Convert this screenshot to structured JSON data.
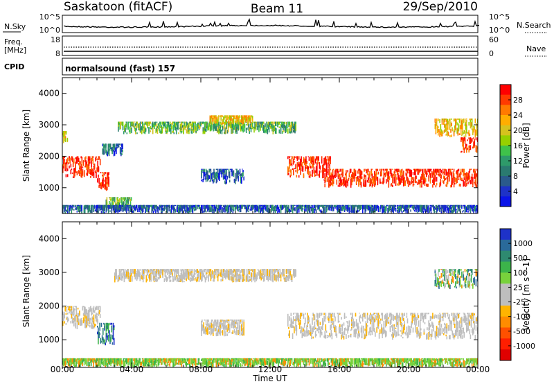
{
  "header": {
    "site": "Saskatoon (fitACF)",
    "beam": "Beam 11",
    "date": "29/Sep/2010"
  },
  "noise_panel": {
    "left_label": "N.Sky",
    "left_ticks": [
      "10^5",
      "10^0"
    ],
    "right_ticks": [
      "10^5",
      "10^0"
    ],
    "right_label": "N.Search"
  },
  "freq_panel": {
    "label_line1": "Freq.",
    "label_line2": "[MHz]",
    "left_ticks": [
      "18",
      "8"
    ],
    "right_ticks": [
      "60",
      "0"
    ],
    "right_label": "Nave"
  },
  "cpid_panel": {
    "label": "CPID",
    "text": "normalsound (fast) 157"
  },
  "chart_data": [
    {
      "type": "heatmap",
      "name": "power",
      "ylabel": "Slant Range [km]",
      "ylim": [
        180,
        4500
      ],
      "y_ticks": [
        1000,
        2000,
        3000,
        4000
      ],
      "colorbar": {
        "label": "Power [dB]",
        "ticks": [
          "28",
          "24",
          "20",
          "16",
          "12",
          "8",
          "4"
        ],
        "colors": [
          "#ff0000",
          "#ff3a00",
          "#ff7a00",
          "#ffad00",
          "#d6c21e",
          "#96d000",
          "#3fc24a",
          "#2e9a6a",
          "#2a7a70",
          "#2a5a8c",
          "#1e32c8",
          "#0a14e8"
        ]
      },
      "scatter_bands": [
        {
          "t0": 0.0,
          "t1": 0.3,
          "r0": 2400,
          "r1": 2800,
          "level": "med"
        },
        {
          "t0": 0.0,
          "t1": 2.2,
          "r0": 1300,
          "r1": 2000,
          "level": "high"
        },
        {
          "t0": 2.0,
          "t1": 2.7,
          "r0": 900,
          "r1": 1500,
          "level": "high"
        },
        {
          "t0": 2.3,
          "t1": 3.5,
          "r0": 2000,
          "r1": 2400,
          "level": "low"
        },
        {
          "t0": 2.5,
          "t1": 4.0,
          "r0": 300,
          "r1": 700,
          "level": "mid"
        },
        {
          "t0": 3.2,
          "t1": 13.5,
          "r0": 2700,
          "r1": 3100,
          "level": "mid"
        },
        {
          "t0": 8.5,
          "t1": 11.0,
          "r0": 3000,
          "r1": 3300,
          "level": "med"
        },
        {
          "t0": 8.0,
          "t1": 10.5,
          "r0": 1100,
          "r1": 1600,
          "level": "low"
        },
        {
          "t0": 13.0,
          "t1": 15.5,
          "r0": 1300,
          "r1": 2000,
          "level": "high"
        },
        {
          "t0": 15.0,
          "t1": 24.0,
          "r0": 1000,
          "r1": 1600,
          "level": "high"
        },
        {
          "t0": 21.5,
          "t1": 24.0,
          "r0": 2600,
          "r1": 3200,
          "level": "med"
        },
        {
          "t0": 23.0,
          "t1": 24.0,
          "r0": 2100,
          "r1": 2600,
          "level": "high"
        },
        {
          "t0": 0.0,
          "t1": 24.0,
          "r0": 180,
          "r1": 450,
          "level": "low"
        }
      ]
    },
    {
      "type": "heatmap",
      "name": "velocity",
      "xlabel": "Time UT",
      "ylabel": "Slant Range [km]",
      "ylim": [
        180,
        4500
      ],
      "y_ticks": [
        1000,
        2000,
        3000,
        4000
      ],
      "x_ticks": [
        "00:00",
        "04:00",
        "08:00",
        "12:00",
        "16:00",
        "20:00",
        "00:00"
      ],
      "colorbar": {
        "label": "Velocity [m s^-1]",
        "ticks": [
          "1000",
          "500",
          "100",
          "25",
          "-25",
          "-100",
          "-500",
          "-1000"
        ],
        "colors": [
          "#1e32c8",
          "#2a6a9a",
          "#2e8a70",
          "#3cb44a",
          "#78d23c",
          "#bebebe",
          "#bebebe",
          "#ffb400",
          "#ff8c00",
          "#ff5000",
          "#ff1e00",
          "#e00000"
        ]
      },
      "scatter_bands": [
        {
          "t0": 0.0,
          "t1": 2.2,
          "r0": 1300,
          "r1": 2000,
          "level": "grey"
        },
        {
          "t0": 2.0,
          "t1": 3.0,
          "r0": 800,
          "r1": 1500,
          "level": "blue"
        },
        {
          "t0": 3.0,
          "t1": 13.5,
          "r0": 2700,
          "r1": 3100,
          "level": "grey"
        },
        {
          "t0": 8.0,
          "t1": 10.5,
          "r0": 1100,
          "r1": 1600,
          "level": "grey"
        },
        {
          "t0": 13.0,
          "t1": 24.0,
          "r0": 1000,
          "r1": 1800,
          "level": "grey"
        },
        {
          "t0": 21.5,
          "t1": 24.0,
          "r0": 2500,
          "r1": 3100,
          "level": "mix"
        },
        {
          "t0": 0.0,
          "t1": 24.0,
          "r0": 180,
          "r1": 450,
          "level": "green"
        }
      ]
    }
  ]
}
